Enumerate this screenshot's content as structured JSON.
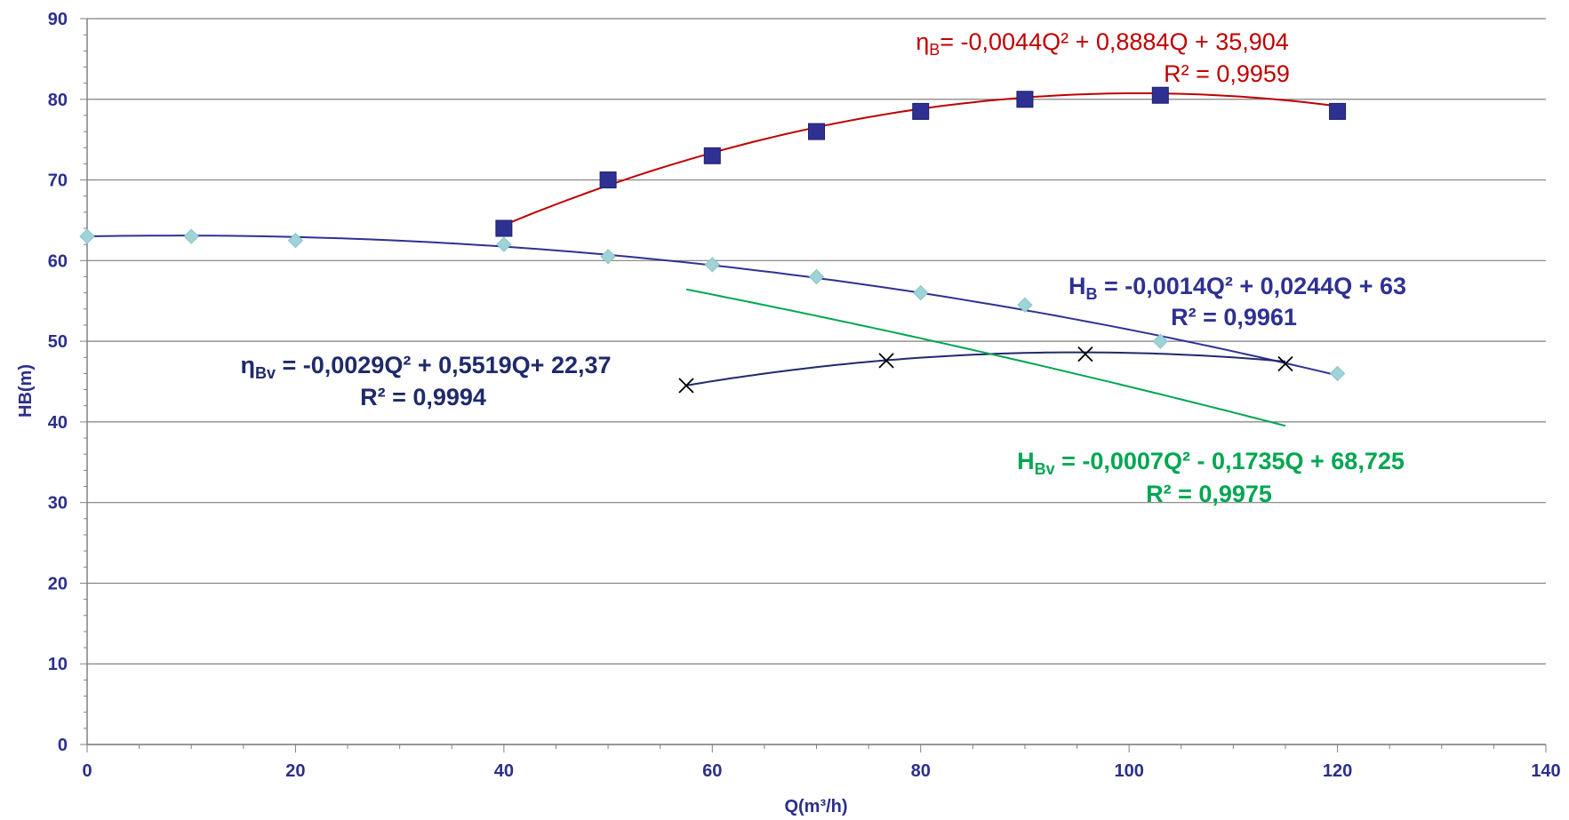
{
  "chart_data": {
    "type": "scatter",
    "title": "",
    "xlabel": "Q(m³/h)",
    "ylabel": "HB(m)",
    "xlim": [
      0,
      140
    ],
    "ylim": [
      0,
      90
    ],
    "x_ticks": [
      "0",
      "20",
      "40",
      "60",
      "80",
      "100",
      "120",
      "140"
    ],
    "y_ticks": [
      "0",
      "10",
      "20",
      "30",
      "40",
      "50",
      "60",
      "70",
      "80",
      "90"
    ],
    "grid": "horizontal",
    "series": [
      {
        "key": "HB",
        "color": "#9fd3d8",
        "marker": "diamond",
        "trend_color": "#2e3192",
        "points": [
          [
            0,
            63
          ],
          [
            10,
            63
          ],
          [
            20,
            62.5
          ],
          [
            40,
            62
          ],
          [
            50,
            60.5
          ],
          [
            60,
            59.5
          ],
          [
            70,
            58
          ],
          [
            80,
            56
          ],
          [
            90,
            54.5
          ],
          [
            103,
            50
          ],
          [
            120,
            46
          ]
        ],
        "trendline": {
          "a": -0.0014,
          "b": 0.0244,
          "c": 63,
          "x_range": [
            0,
            120
          ]
        },
        "annotation": {
          "main": "H",
          "sub": "B",
          "rest": " = -0,0014Q² + 0,0244Q + 63",
          "r2": "R² = 0,9961",
          "bold": true
        }
      },
      {
        "key": "etaB",
        "color": "#2e3192",
        "marker": "square",
        "trend_color": "#c00000",
        "points": [
          [
            40,
            64
          ],
          [
            50,
            70
          ],
          [
            60,
            73
          ],
          [
            70,
            76
          ],
          [
            80,
            78.5
          ],
          [
            90,
            80
          ],
          [
            103,
            80.5
          ],
          [
            120,
            78.5
          ]
        ],
        "trendline": {
          "a": -0.0044,
          "b": 0.8884,
          "c": 35.904,
          "x_range": [
            40,
            120
          ]
        },
        "annotation": {
          "main": "η",
          "sub": "B",
          "rest": "= -0,0044Q² + 0,8884Q + 35,904",
          "r2": "R² = 0,9959",
          "bold": false
        }
      },
      {
        "key": "etaBv",
        "color": "#000000",
        "marker": "x",
        "trend_color": "#1f2a6b",
        "points": [
          [
            57.5,
            44.5
          ],
          [
            76.7,
            47.6
          ],
          [
            95.8,
            48.4
          ],
          [
            115,
            47.2
          ]
        ],
        "trendline": {
          "a": -0.0029,
          "b": 0.5519,
          "c": 22.37,
          "x_range": [
            57.5,
            115
          ]
        },
        "annotation": {
          "main": "η",
          "sub": "Bv",
          "rest": " = -0,0029Q² + 0,5519Q+ 22,37",
          "r2": "R² = 0,9994",
          "bold": true
        }
      },
      {
        "key": "HBv",
        "color": "#00a651",
        "marker": "none",
        "trend_color": "#00a651",
        "points": [],
        "trendline": {
          "a": -0.0007,
          "b": -0.1735,
          "c": 68.725,
          "x_range": [
            57.5,
            115
          ]
        },
        "annotation": {
          "main": "H",
          "sub": "Bv",
          "rest": " = -0,0007Q² - 0,1735Q + 68,725",
          "r2": "R² = 0,9975",
          "bold": true
        }
      }
    ]
  }
}
